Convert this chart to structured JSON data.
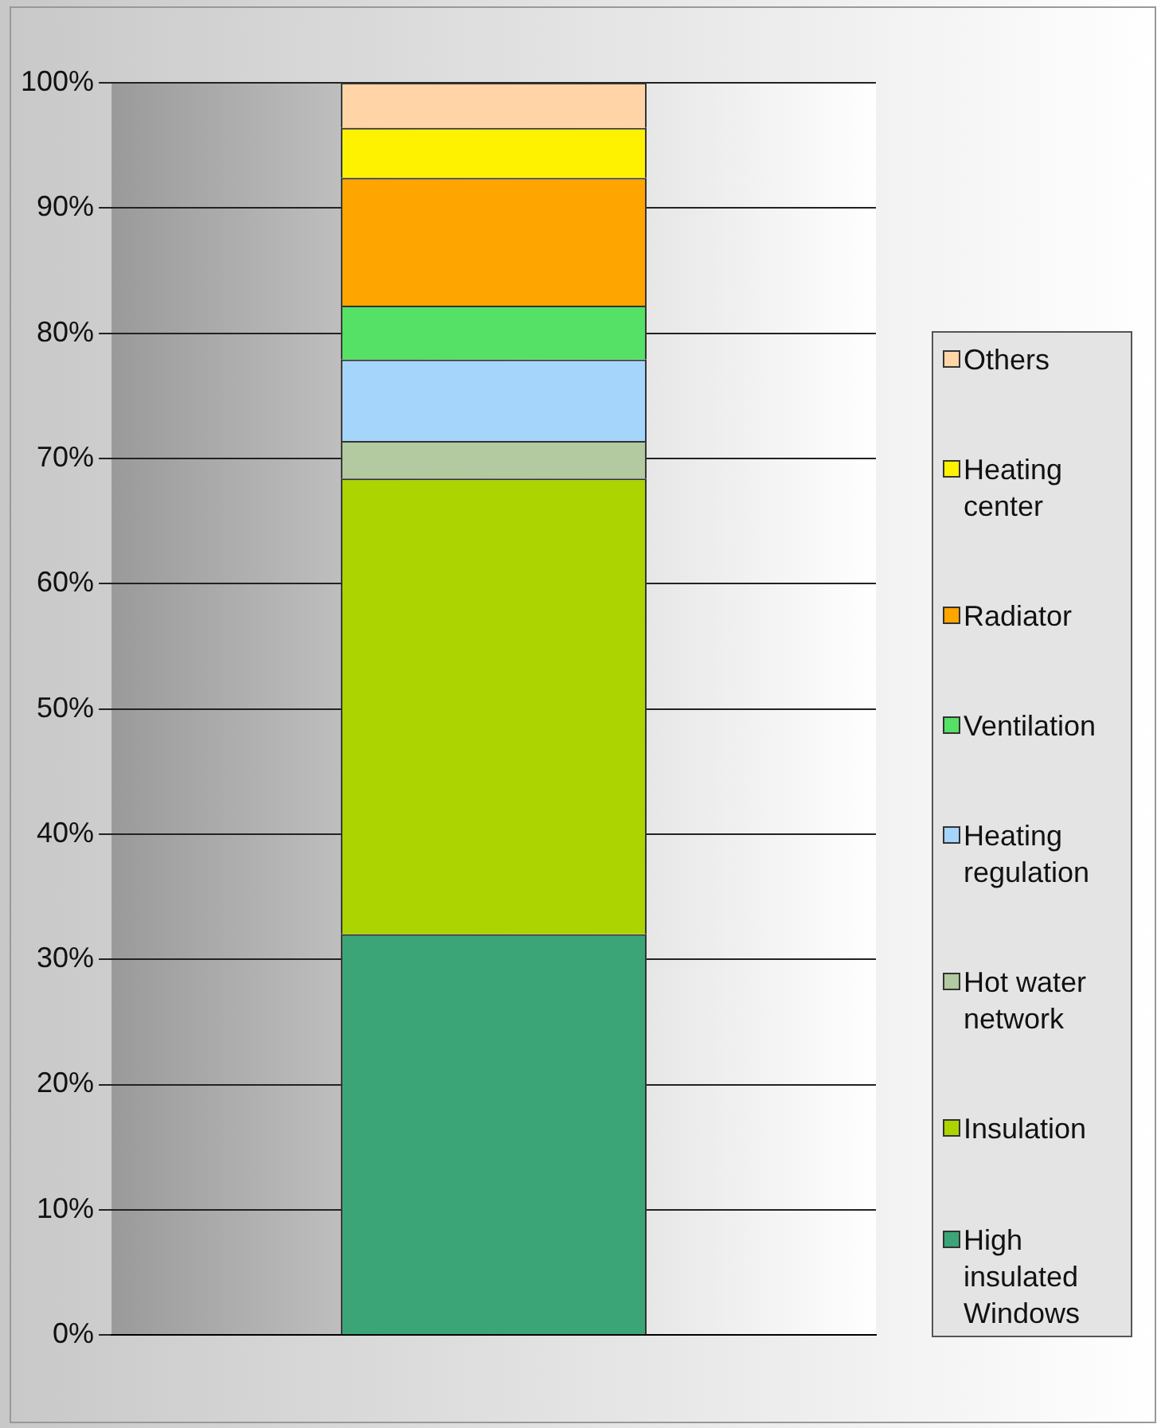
{
  "chart_data": {
    "type": "bar",
    "stacked": true,
    "categories": [
      null
    ],
    "series": [
      {
        "name": "High insulated Windows",
        "color": "#3ba577",
        "values": [
          32
        ]
      },
      {
        "name": "Insulation",
        "color": "#acd400",
        "values": [
          36.4
        ]
      },
      {
        "name": "Hot water network",
        "color": "#b3c99f",
        "values": [
          3
        ]
      },
      {
        "name": "Heating regulation",
        "color": "#a6d5fc",
        "values": [
          6.5
        ]
      },
      {
        "name": "Ventilation",
        "color": "#55e066",
        "values": [
          4.3
        ]
      },
      {
        "name": "Radiator",
        "color": "#ffa500",
        "values": [
          10.2
        ]
      },
      {
        "name": "Heating center",
        "color": "#fff200",
        "values": [
          4
        ]
      },
      {
        "name": "Others",
        "color": "#ffd4a6",
        "values": [
          3.6
        ]
      }
    ],
    "ylim": [
      0,
      100
    ],
    "yticks": [
      {
        "value": 0,
        "label": "0%"
      },
      {
        "value": 10,
        "label": "10%"
      },
      {
        "value": 20,
        "label": "20%"
      },
      {
        "value": 30,
        "label": "30%"
      },
      {
        "value": 40,
        "label": "40%"
      },
      {
        "value": 50,
        "label": "50%"
      },
      {
        "value": 60,
        "label": "60%"
      },
      {
        "value": 70,
        "label": "70%"
      },
      {
        "value": 80,
        "label": "80%"
      },
      {
        "value": 90,
        "label": "90%"
      },
      {
        "value": 100,
        "label": "100%"
      }
    ],
    "grid": "y",
    "legend": "right"
  }
}
